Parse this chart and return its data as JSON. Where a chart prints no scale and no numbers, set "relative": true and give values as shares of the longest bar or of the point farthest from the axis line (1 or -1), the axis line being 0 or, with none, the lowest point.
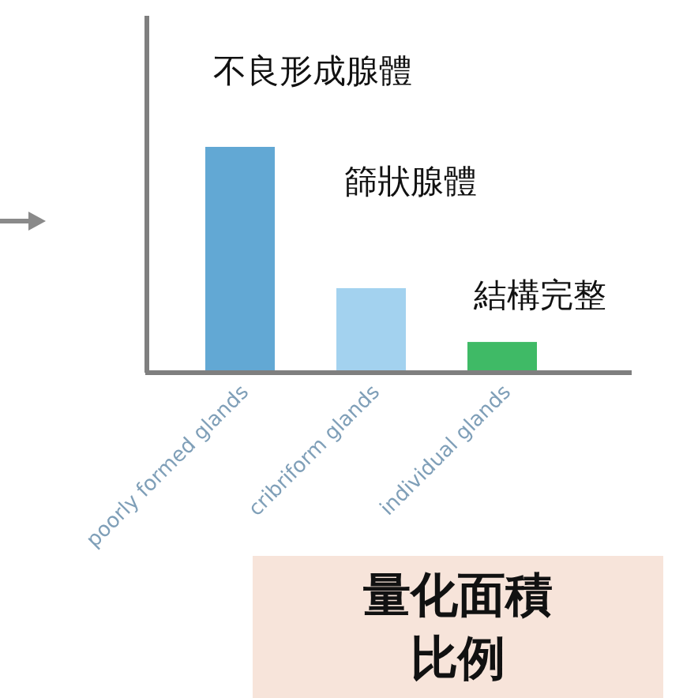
{
  "chart_data": {
    "type": "bar",
    "relative": true,
    "categories": [
      "poorly formed glands",
      "cribriform glands",
      "individual glands"
    ],
    "values": [
      1,
      0.37,
      0.13
    ],
    "colors": [
      "#62a8d4",
      "#a3d2ef",
      "#3fba66"
    ],
    "annotations": [
      "不良形成腺體",
      "篩狀腺體",
      "結構完整",
      "量化面積比例"
    ]
  }
}
